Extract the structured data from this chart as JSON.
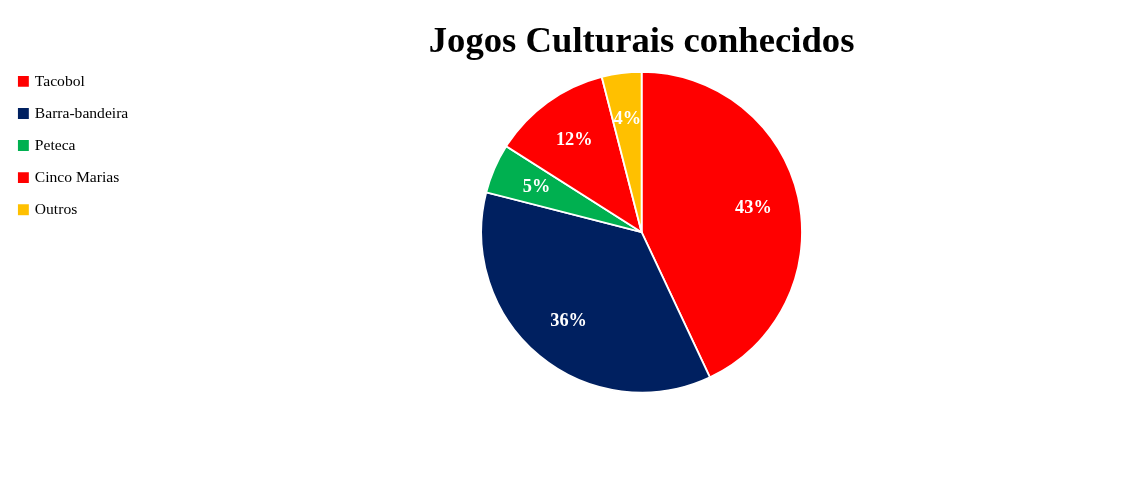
{
  "chart_data": {
    "type": "pie",
    "title": "Jogos Culturais conhecidos",
    "categories": [
      "Tacobol",
      "Barra-bandeira",
      "Peteca",
      "Cinco Marias",
      "Outros"
    ],
    "values": [
      43,
      36,
      5,
      12,
      4
    ],
    "colors": [
      "#ff0000",
      "#002060",
      "#00b050",
      "#ff0000",
      "#ffc000"
    ],
    "value_labels": [
      "43%",
      "36%",
      "5%",
      "12%",
      "4%"
    ],
    "legend": "left"
  }
}
